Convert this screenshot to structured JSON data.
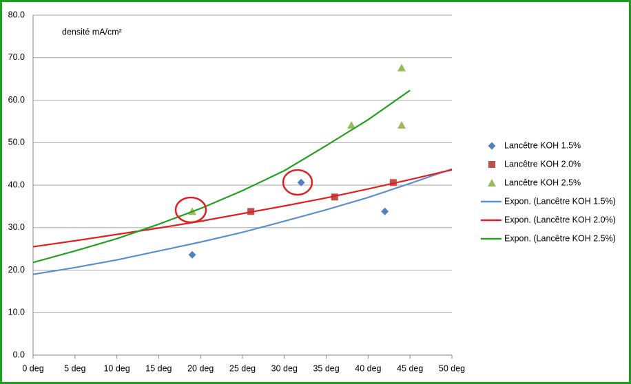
{
  "chart_data": {
    "type": "scatter",
    "annotation": "densité mA/cm²",
    "xlim": [
      0,
      50
    ],
    "ylim": [
      0,
      80
    ],
    "xticks": [
      {
        "value": 0,
        "label": "0 deg"
      },
      {
        "value": 5,
        "label": "5 deg"
      },
      {
        "value": 10,
        "label": "10 deg"
      },
      {
        "value": 15,
        "label": "15 deg"
      },
      {
        "value": 20,
        "label": "20 deg"
      },
      {
        "value": 25,
        "label": "25 deg"
      },
      {
        "value": 30,
        "label": "30 deg"
      },
      {
        "value": 35,
        "label": "35 deg"
      },
      {
        "value": 40,
        "label": "40 deg"
      },
      {
        "value": 45,
        "label": "45 deg"
      },
      {
        "value": 50,
        "label": "50 deg"
      }
    ],
    "yticks": [
      {
        "value": 0,
        "label": "0.0"
      },
      {
        "value": 10,
        "label": "10.0"
      },
      {
        "value": 20,
        "label": "20.0"
      },
      {
        "value": 30,
        "label": "30.0"
      },
      {
        "value": 40,
        "label": "40.0"
      },
      {
        "value": 50,
        "label": "50.0"
      },
      {
        "value": 60,
        "label": "60.0"
      },
      {
        "value": 70,
        "label": "70.0"
      },
      {
        "value": 80,
        "label": "80.0"
      }
    ],
    "grid": true,
    "legend": "right",
    "series": [
      {
        "name": "Lancêtre KOH 1.5%",
        "color": "#4f81bd",
        "marker": "diamond",
        "x": [
          19,
          32,
          42
        ],
        "values": [
          23.6,
          40.6,
          33.8
        ]
      },
      {
        "name": "Lancêtre KOH 2.0%",
        "color": "#c0504d",
        "marker": "square",
        "x": [
          26,
          36,
          43
        ],
        "values": [
          33.8,
          37.2,
          40.6
        ]
      },
      {
        "name": "Lancêtre KOH 2.5%",
        "color": "#9bbb59",
        "marker": "triangle",
        "x": [
          19,
          38,
          44,
          44
        ],
        "values": [
          33.8,
          54.1,
          54.1,
          67.6
        ]
      },
      {
        "name": "Expon. (Lancêtre KOH 1.5%)",
        "color": "#5b8fd0",
        "marker": "line",
        "x": [
          0,
          5,
          10,
          15,
          20,
          25,
          30,
          35,
          40,
          45,
          50
        ],
        "values": [
          19.0,
          20.6,
          22.4,
          24.5,
          26.6,
          28.9,
          31.5,
          34.2,
          37.1,
          40.4,
          43.8
        ]
      },
      {
        "name": "Expon. (Lancêtre KOH 2.0%)",
        "color": "#e02020",
        "marker": "line",
        "x": [
          0,
          5,
          10,
          15,
          20,
          25,
          30,
          35,
          40,
          45,
          50
        ],
        "values": [
          25.5,
          26.9,
          28.4,
          29.9,
          31.5,
          33.3,
          35.1,
          37.0,
          39.1,
          41.3,
          43.6
        ]
      },
      {
        "name": "Expon. (Lancêtre KOH 2.5%)",
        "color": "#22a022",
        "marker": "line",
        "x": [
          0,
          5,
          10,
          15,
          20,
          25,
          30,
          35,
          40,
          45
        ],
        "values": [
          21.8,
          24.5,
          27.4,
          30.8,
          34.5,
          38.7,
          43.4,
          49.3,
          55.4,
          62.3
        ]
      }
    ]
  }
}
